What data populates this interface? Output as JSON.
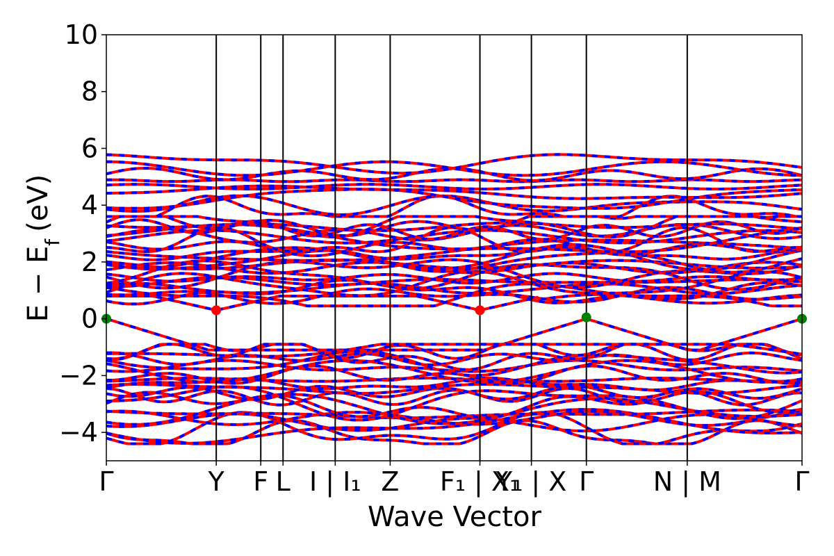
{
  "chart_data": {
    "type": "line",
    "title": "",
    "xlabel": "Wave Vector",
    "ylabel": "E − E_f (eV)",
    "ylabel_main": "E − E",
    "ylabel_sub": "f",
    "ylabel_unit": "(eV)",
    "ylim": [
      -5,
      10
    ],
    "yticks": [
      -4,
      -2,
      0,
      2,
      4,
      6,
      8,
      10
    ],
    "ytick_labels": [
      "−4",
      "−2",
      "0",
      "2",
      "4",
      "6",
      "8",
      "10"
    ],
    "xlim": [
      0,
      1
    ],
    "kpoints": [
      {
        "pos": 0.0,
        "label": "Γ"
      },
      {
        "pos": 0.158,
        "label": "Y"
      },
      {
        "pos": 0.222,
        "label": "F"
      },
      {
        "pos": 0.254,
        "label": "L"
      },
      {
        "pos": 0.329,
        "label": "I | I₁"
      },
      {
        "pos": 0.408,
        "label": "Z"
      },
      {
        "pos": 0.537,
        "label": "F₁ | X₁"
      },
      {
        "pos": 0.611,
        "label": "Y₁ | X"
      },
      {
        "pos": 0.69,
        "label": "Γ"
      },
      {
        "pos": 0.835,
        "label": "N | M"
      },
      {
        "pos": 1.0,
        "label": "Γ"
      }
    ],
    "series": [
      {
        "key": "spin_up",
        "color": "#ff0000",
        "style": "solid"
      },
      {
        "key": "spin_down",
        "color": "#0000ff",
        "style": "dashed"
      }
    ],
    "band_groups": {
      "conduction_low": {
        "min": 0.3,
        "max": 3.6,
        "count": 24
      },
      "conduction_high": {
        "min": 3.6,
        "max": 5.8,
        "count": 9
      },
      "valence": {
        "min": -4.4,
        "max": 0.05,
        "count": 22
      }
    },
    "cbm_points": [
      {
        "x": 0.158,
        "y": 0.3
      },
      {
        "x": 0.537,
        "y": 0.3
      }
    ],
    "vbm_points": [
      {
        "x": 0.0,
        "y": 0.0
      },
      {
        "x": 0.69,
        "y": 0.05
      },
      {
        "x": 1.0,
        "y": 0.0
      }
    ],
    "colors": {
      "cbm": "#ff0000",
      "vbm": "#008000",
      "axis": "#000000"
    }
  }
}
